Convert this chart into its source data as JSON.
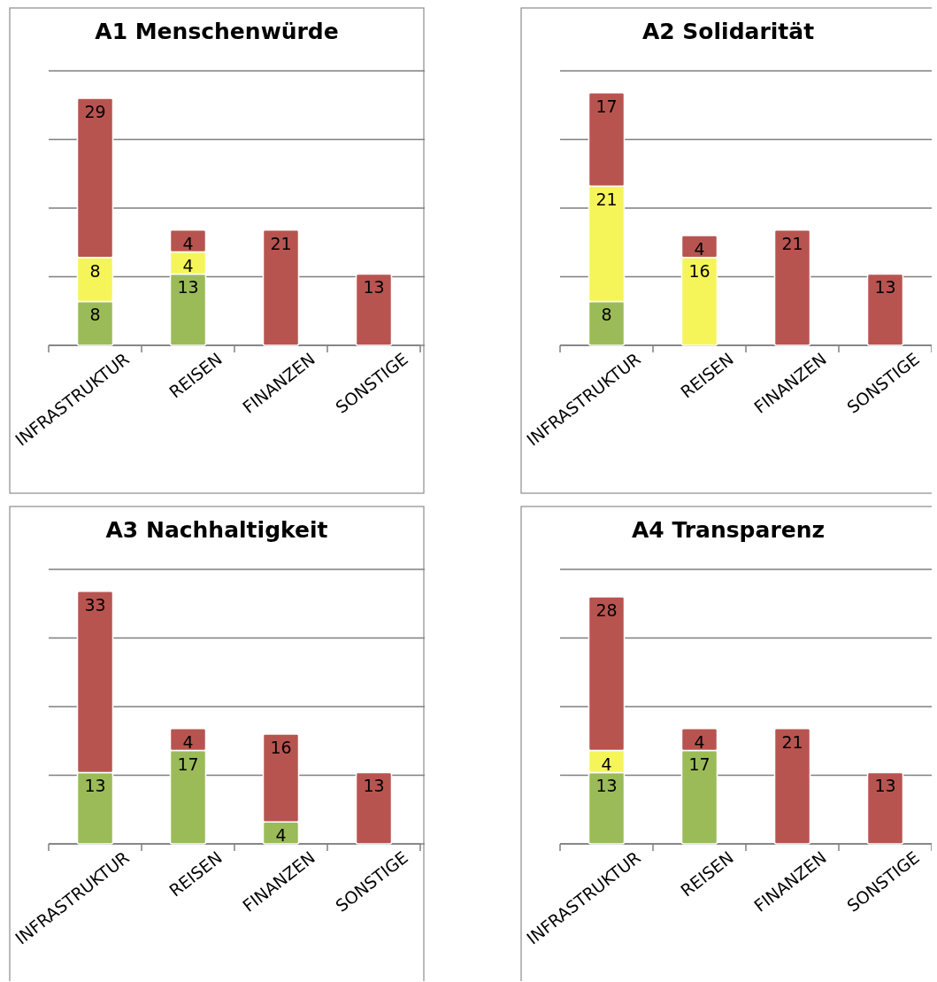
{
  "chart_data": [
    {
      "type": "bar",
      "title": "A1 Menschenwürde",
      "categories": [
        "INFRASTRUKTUR",
        "REISEN",
        "FINANZEN",
        "SONSTIGE"
      ],
      "stacked": true,
      "data_labels": true,
      "grid": "y",
      "tick_labels": "x",
      "ylim": [
        0,
        50
      ],
      "yticks": [
        {
          "value": 0,
          "label": null
        },
        {
          "value": 12.5,
          "label": null
        },
        {
          "value": 25,
          "label": null
        },
        {
          "value": 37.5,
          "label": null
        },
        {
          "value": 50,
          "label": null
        }
      ],
      "series": [
        {
          "color": "#9bbb59",
          "values": [
            8,
            13,
            null,
            null
          ]
        },
        {
          "color": "#f5f55a",
          "values": [
            8,
            4,
            null,
            null
          ]
        },
        {
          "color": "#b85450",
          "values": [
            29,
            4,
            21,
            13
          ]
        }
      ]
    },
    {
      "type": "bar",
      "title": "A2 Solidarität",
      "categories": [
        "INFRASTRUKTUR",
        "REISEN",
        "FINANZEN",
        "SONSTIGE"
      ],
      "stacked": true,
      "data_labels": true,
      "grid": "y",
      "tick_labels": "x",
      "ylim": [
        0,
        50
      ],
      "yticks": [
        {
          "value": 0,
          "label": null
        },
        {
          "value": 12.5,
          "label": null
        },
        {
          "value": 25,
          "label": null
        },
        {
          "value": 37.5,
          "label": null
        },
        {
          "value": 50,
          "label": null
        }
      ],
      "series": [
        {
          "color": "#9bbb59",
          "values": [
            8,
            null,
            null,
            null
          ]
        },
        {
          "color": "#f5f55a",
          "values": [
            21,
            16,
            null,
            null
          ]
        },
        {
          "color": "#b85450",
          "values": [
            17,
            4,
            21,
            13
          ]
        }
      ]
    },
    {
      "type": "bar",
      "title": "A3 Nachhaltigkeit",
      "categories": [
        "INFRASTRUKTUR",
        "REISEN",
        "FINANZEN",
        "SONSTIGE"
      ],
      "stacked": true,
      "data_labels": true,
      "grid": "y",
      "tick_labels": "x",
      "ylim": [
        0,
        50
      ],
      "yticks": [
        {
          "value": 0,
          "label": null
        },
        {
          "value": 12.5,
          "label": null
        },
        {
          "value": 25,
          "label": null
        },
        {
          "value": 37.5,
          "label": null
        },
        {
          "value": 50,
          "label": null
        }
      ],
      "series": [
        {
          "color": "#9bbb59",
          "values": [
            13,
            17,
            4,
            null
          ]
        },
        {
          "color": "#b85450",
          "values": [
            33,
            4,
            16,
            13
          ]
        }
      ]
    },
    {
      "type": "bar",
      "title": "A4 Transparenz",
      "categories": [
        "INFRASTRUKTUR",
        "REISEN",
        "FINANZEN",
        "SONSTIGE"
      ],
      "stacked": true,
      "data_labels": true,
      "grid": "y",
      "tick_labels": "x",
      "ylim": [
        0,
        50
      ],
      "yticks": [
        {
          "value": 0,
          "label": null
        },
        {
          "value": 12.5,
          "label": null
        },
        {
          "value": 25,
          "label": null
        },
        {
          "value": 37.5,
          "label": null
        },
        {
          "value": 50,
          "label": null
        }
      ],
      "series": [
        {
          "color": "#9bbb59",
          "values": [
            13,
            17,
            null,
            null
          ]
        },
        {
          "color": "#f5f55a",
          "values": [
            4,
            null,
            null,
            null
          ]
        },
        {
          "color": "#b85450",
          "values": [
            28,
            4,
            21,
            13
          ]
        }
      ]
    }
  ]
}
